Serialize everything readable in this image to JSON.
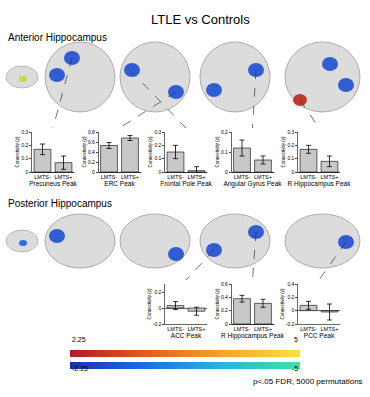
{
  "title": "LTLE vs Controls",
  "panels": [
    "Anterior Hippocampus",
    "Posterior Hippocampus"
  ],
  "chart_data": [
    {
      "type": "bar",
      "panel": "Anterior Hippocampus",
      "x_label": "Precuneus Peak",
      "y_label": "Connectivity (z)",
      "categories": [
        "LMTS-",
        "LMTS+"
      ],
      "values": [
        0.17,
        0.07
      ],
      "errors": [
        0.04,
        0.05
      ],
      "color": "#c8c8c8",
      "ylim": [
        0,
        0.3
      ],
      "yticks": [
        0,
        0.1,
        0.2,
        0.3
      ],
      "grid": false
    },
    {
      "type": "bar",
      "panel": "Anterior Hippocampus",
      "x_label": "ERC Peak",
      "y_label": "Connectivity (z)",
      "categories": [
        "LMTS-",
        "LMTS+"
      ],
      "values": [
        0.53,
        0.68
      ],
      "errors": [
        0.06,
        0.05
      ],
      "color": "#c8c8c8",
      "ylim": [
        0,
        0.8
      ],
      "yticks": [
        0,
        0.2,
        0.4,
        0.6,
        0.8
      ],
      "grid": false
    },
    {
      "type": "bar",
      "panel": "Anterior Hippocampus",
      "x_label": "Frontal Pole Peak",
      "y_label": "Connectivity (z)",
      "categories": [
        "LMTS-",
        "LMTS+"
      ],
      "values": [
        0.15,
        0.01
      ],
      "errors": [
        0.05,
        0.03
      ],
      "color": "#c8c8c8",
      "ylim": [
        0,
        0.3
      ],
      "yticks": [
        0,
        0.1,
        0.2,
        0.3
      ],
      "grid": false
    },
    {
      "type": "bar",
      "panel": "Anterior Hippocampus",
      "x_label": "Angular Gyrus Peak",
      "y_label": "Connectivity (z)",
      "categories": [
        "LMTS-",
        "LMTS+"
      ],
      "values": [
        0.12,
        0.06
      ],
      "errors": [
        0.04,
        0.02
      ],
      "color": "#c8c8c8",
      "ylim": [
        0,
        0.2
      ],
      "yticks": [
        0,
        0.1,
        0.2
      ],
      "grid": false
    },
    {
      "type": "bar",
      "panel": "Anterior Hippocampus",
      "x_label": "R Hippocampus Peak",
      "y_label": "Connectivity (z)",
      "categories": [
        "LMTS-",
        "LMTS+"
      ],
      "values": [
        0.17,
        0.08
      ],
      "errors": [
        0.03,
        0.04
      ],
      "color": "#c8c8c8",
      "ylim": [
        0,
        0.3
      ],
      "yticks": [
        0,
        0.1,
        0.2,
        0.3
      ],
      "grid": false
    },
    {
      "type": "bar",
      "panel": "Posterior Hippocampus",
      "x_label": "ACC Peak",
      "y_label": "Connectivity (z)",
      "categories": [
        "LMTS-",
        "LMTS+"
      ],
      "values": [
        0.03,
        -0.04
      ],
      "errors": [
        0.05,
        0.05
      ],
      "color": "#c8c8c8",
      "ylim": [
        -0.2,
        0.3
      ],
      "yticks": [
        -0.2,
        0,
        0.2
      ],
      "grid": false
    },
    {
      "type": "bar",
      "panel": "Posterior Hippocampus",
      "x_label": "R Hippocampus Peak",
      "y_label": "Connectivity (z)",
      "categories": [
        "LMTS-",
        "LMTS+"
      ],
      "values": [
        0.38,
        0.31
      ],
      "errors": [
        0.05,
        0.06
      ],
      "color": "#c8c8c8",
      "ylim": [
        0,
        0.6
      ],
      "yticks": [
        0,
        0.2,
        0.4,
        0.6
      ],
      "grid": false
    },
    {
      "type": "bar",
      "panel": "Posterior Hippocampus",
      "x_label": "PCC Peak",
      "y_label": "Connectivity (z)",
      "categories": [
        "LMTS-",
        "LMTS+"
      ],
      "values": [
        0.08,
        -0.02
      ],
      "errors": [
        0.06,
        0.12
      ],
      "color": "#c8c8c8",
      "ylim": [
        -0.2,
        0.4
      ],
      "yticks": [
        -0.2,
        0,
        0.2,
        0.4
      ],
      "grid": false
    }
  ],
  "color_scale": [
    {
      "range": [
        2.25,
        5
      ],
      "colors": [
        "#b2182b",
        "#e8591f",
        "#f5a623",
        "#f7e23b"
      ]
    },
    {
      "range": [
        -2.25,
        -5
      ],
      "colors": [
        "#1a2fb5",
        "#1f6fe0",
        "#2bb5d8",
        "#3fe0a8"
      ]
    }
  ],
  "caption": "p<.05 FDR, 5000 permutations"
}
